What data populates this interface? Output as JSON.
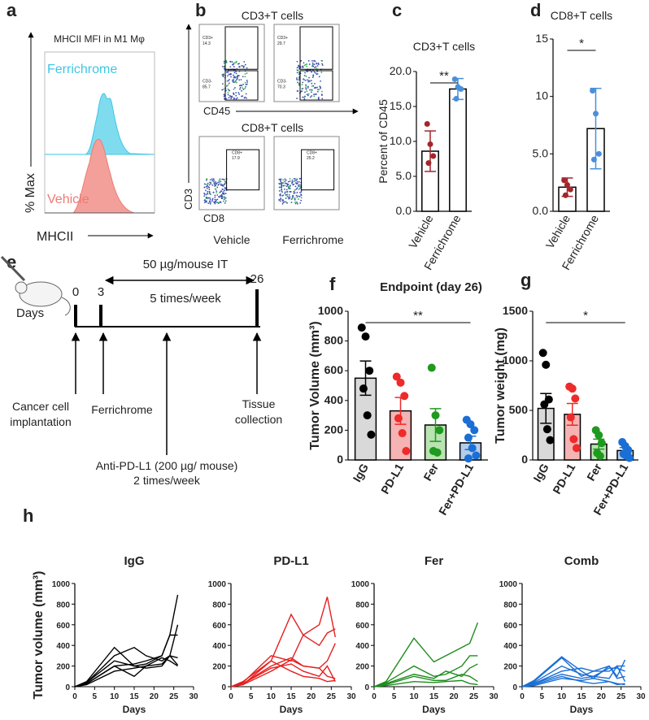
{
  "panel_labels": [
    "a",
    "b",
    "c",
    "d",
    "e",
    "f",
    "g",
    "h"
  ],
  "panel_a": {
    "title": "MHCII MFI in M1 Mφ",
    "series_labels": [
      "Ferrichrome",
      "Vehicle"
    ],
    "y_label": "% Max",
    "x_label": "MHCII"
  },
  "panel_b": {
    "titles": [
      "CD3+T cells",
      "CD8+T cells"
    ],
    "x_labels": [
      "CD45",
      "CD8"
    ],
    "y_label": "CD3",
    "groups": [
      "Vehicle",
      "Ferrichrome"
    ],
    "gates": [
      [
        "CD3+",
        "14.3",
        "CD3-",
        "85.7"
      ],
      [
        "CD3+",
        "29.7",
        "CD3-",
        "70.3"
      ],
      [
        "CD8+",
        "17.9"
      ],
      [
        "CD8+",
        "25.2"
      ]
    ]
  },
  "panel_e": {
    "days_label": "Days",
    "timepoints": [
      "0",
      "3",
      "26"
    ],
    "dose": "50 µg/mouse IT",
    "frequency": "5 times/week",
    "events": [
      [
        "Cancer cell",
        "implantation"
      ],
      [
        "Ferrichrome"
      ],
      [
        "Anti-PD-L1 (200 µg/ mouse)",
        "2 times/week"
      ],
      [
        "Tissue",
        "collection"
      ]
    ]
  },
  "chart_data": [
    {
      "type": "bar",
      "title": "CD3+T cells",
      "y_label": "Percent of CD45",
      "categories": [
        "Vehicle",
        "Ferrichrome"
      ],
      "values": [
        8.6,
        17.5
      ],
      "errors": [
        2.9,
        1.5
      ],
      "points": [
        [
          12.5,
          9.6,
          7.9,
          6.9
        ],
        [
          18.9,
          17.8,
          17.5,
          16.1
        ]
      ],
      "colors": [
        "#a3262b",
        "#4a8fdc"
      ],
      "bar_colors": [
        "#ffffff",
        "#ffffff"
      ],
      "significance": "**",
      "ylim": [
        0,
        20
      ],
      "yticks": [
        {
          "value": 0,
          "label": "0.0"
        },
        {
          "value": 5,
          "label": "5.0"
        },
        {
          "value": 10,
          "label": "10.0"
        },
        {
          "value": 15,
          "label": "15.0"
        },
        {
          "value": 20,
          "label": "20.0"
        }
      ]
    },
    {
      "type": "bar",
      "title": "CD8+T cells",
      "categories": [
        "Vehicle",
        "Ferrichrome"
      ],
      "values": [
        2.1,
        7.2
      ],
      "errors": [
        0.8,
        3.5
      ],
      "points": [
        [
          2.7,
          2.3,
          1.9,
          1.4
        ],
        [
          10.5,
          8.5,
          5.0,
          4.5
        ]
      ],
      "colors": [
        "#a3262b",
        "#4a8fdc"
      ],
      "bar_colors": [
        "#ffffff",
        "#ffffff"
      ],
      "significance": "*",
      "ylim": [
        0,
        15
      ],
      "yticks": [
        {
          "value": 0,
          "label": "0.0"
        },
        {
          "value": 5,
          "label": "5.0"
        },
        10,
        15
      ]
    },
    {
      "type": "bar",
      "title": "Endpoint (day 26)",
      "y_label": "Tumor Volume (mm³)",
      "categories": [
        "IgG",
        "PD-L1",
        "Fer",
        "Fer+PD-L1"
      ],
      "values": [
        550,
        330,
        235,
        115
      ],
      "errors": [
        115,
        90,
        110,
        45
      ],
      "points": [
        [
          890,
          830,
          600,
          480,
          300,
          170
        ],
        [
          560,
          520,
          430,
          280,
          180,
          60
        ],
        [
          620,
          300,
          200,
          60,
          50
        ],
        [
          270,
          240,
          200,
          150,
          80,
          30,
          10
        ]
      ],
      "colors": [
        "#000000",
        "#ee2a2a",
        "#1e9a1e",
        "#1a6fd6"
      ],
      "bar_colors": [
        "#d9d9d9",
        "#f6b3b3",
        "#b9e3b0",
        "#b3cdea"
      ],
      "significance": "**",
      "ylim": [
        0,
        1000
      ],
      "yticks": [
        0,
        200,
        400,
        600,
        800,
        1000
      ]
    },
    {
      "type": "bar",
      "y_label": "Tumor weight (mg)",
      "categories": [
        "IgG",
        "PD-L1",
        "Fer",
        "Fer+PD-L1"
      ],
      "values": [
        520,
        460,
        160,
        95
      ],
      "errors": [
        150,
        110,
        50,
        30
      ],
      "points": [
        [
          1080,
          960,
          610,
          560,
          310,
          200
        ],
        [
          740,
          720,
          620,
          430,
          210,
          120
        ],
        [
          300,
          250,
          170,
          70,
          40
        ],
        [
          180,
          140,
          100,
          60,
          40,
          20
        ]
      ],
      "colors": [
        "#000000",
        "#ee2a2a",
        "#1e9a1e",
        "#1a6fd6"
      ],
      "bar_colors": [
        "#d9d9d9",
        "#f6b3b3",
        "#b9e3b0",
        "#b3cdea"
      ],
      "significance": "*",
      "ylim": [
        0,
        1500
      ],
      "yticks": [
        0,
        500,
        1000,
        1500
      ]
    },
    {
      "type": "line",
      "title": "IgG",
      "y_label": "Tumor volume (mm³)",
      "x_label": "Days",
      "color": "#000000",
      "x": [
        0,
        3,
        10,
        15,
        18,
        22,
        24,
        26
      ],
      "xlim": [
        0,
        30
      ],
      "xticks": [
        0,
        5,
        10,
        15,
        20,
        25,
        30
      ],
      "ylim": [
        0,
        1000
      ],
      "yticks": [
        0,
        200,
        400,
        600,
        800,
        1000
      ],
      "series": [
        {
          "values": [
            0,
            50,
            380,
            200,
            220,
            300,
            500,
            890
          ]
        },
        {
          "values": [
            0,
            40,
            300,
            380,
            300,
            250,
            300,
            600
          ]
        },
        {
          "values": [
            0,
            30,
            200,
            220,
            250,
            300,
            500,
            500
          ]
        },
        {
          "values": [
            0,
            40,
            250,
            200,
            180,
            200,
            300,
            280
          ]
        },
        {
          "values": [
            0,
            30,
            200,
            100,
            200,
            280,
            250,
            200
          ]
        },
        {
          "values": [
            0,
            20,
            150,
            180,
            200,
            220,
            300,
            210
          ]
        }
      ]
    },
    {
      "type": "line",
      "title": "PD-L1",
      "x_label": "Days",
      "color": "#e51f1f",
      "x": [
        0,
        3,
        10,
        15,
        18,
        22,
        24,
        26
      ],
      "xlim": [
        0,
        30
      ],
      "xticks": [
        0,
        5,
        10,
        15,
        20,
        25,
        30
      ],
      "ylim": [
        0,
        1000
      ],
      "yticks": [
        0,
        200,
        400,
        600,
        800,
        1000
      ],
      "series": [
        {
          "values": [
            0,
            50,
            250,
            700,
            500,
            600,
            870,
            480
          ]
        },
        {
          "values": [
            0,
            40,
            300,
            250,
            500,
            400,
            520,
            560
          ]
        },
        {
          "values": [
            0,
            30,
            200,
            280,
            200,
            180,
            250,
            420
          ]
        },
        {
          "values": [
            0,
            30,
            180,
            220,
            150,
            100,
            200,
            50
          ]
        },
        {
          "values": [
            0,
            20,
            250,
            150,
            100,
            80,
            50,
            60
          ]
        },
        {
          "values": [
            0,
            20,
            150,
            260,
            200,
            180,
            100,
            80
          ]
        }
      ]
    },
    {
      "type": "line",
      "title": "Fer",
      "x_label": "Days",
      "color": "#1e8c1e",
      "x": [
        0,
        3,
        10,
        15,
        18,
        22,
        24,
        26
      ],
      "xlim": [
        0,
        30
      ],
      "xticks": [
        0,
        5,
        10,
        15,
        20,
        25,
        30
      ],
      "ylim": [
        0,
        1000
      ],
      "yticks": [
        0,
        200,
        400,
        600,
        800,
        1000
      ],
      "series": [
        {
          "values": [
            0,
            50,
            470,
            240,
            300,
            380,
            420,
            620
          ]
        },
        {
          "values": [
            0,
            40,
            200,
            100,
            120,
            200,
            300,
            300
          ]
        },
        {
          "values": [
            0,
            30,
            120,
            80,
            150,
            100,
            180,
            220
          ]
        },
        {
          "values": [
            0,
            20,
            100,
            60,
            60,
            120,
            100,
            50
          ]
        },
        {
          "values": [
            0,
            10,
            50,
            40,
            50,
            60,
            30,
            20
          ]
        }
      ]
    },
    {
      "type": "line",
      "title": "Comb",
      "x_label": "Days",
      "color": "#1a6fd6",
      "x": [
        0,
        3,
        10,
        15,
        18,
        22,
        24,
        26
      ],
      "xlim": [
        0,
        30
      ],
      "xticks": [
        0,
        5,
        10,
        15,
        20,
        25,
        30
      ],
      "ylim": [
        0,
        1000
      ],
      "yticks": [
        0,
        200,
        400,
        600,
        800,
        1000
      ],
      "series": [
        {
          "values": [
            0,
            60,
            290,
            150,
            80,
            200,
            100,
            260
          ]
        },
        {
          "values": [
            0,
            50,
            280,
            100,
            150,
            150,
            200,
            200
          ]
        },
        {
          "values": [
            0,
            40,
            200,
            120,
            100,
            180,
            180,
            150
          ]
        },
        {
          "values": [
            0,
            30,
            150,
            180,
            150,
            200,
            80,
            100
          ]
        },
        {
          "values": [
            0,
            30,
            120,
            80,
            100,
            80,
            200,
            50
          ]
        },
        {
          "values": [
            0,
            20,
            100,
            50,
            30,
            50,
            30,
            20
          ]
        },
        {
          "values": [
            0,
            10,
            80,
            60,
            80,
            50,
            20,
            30
          ]
        }
      ]
    }
  ]
}
